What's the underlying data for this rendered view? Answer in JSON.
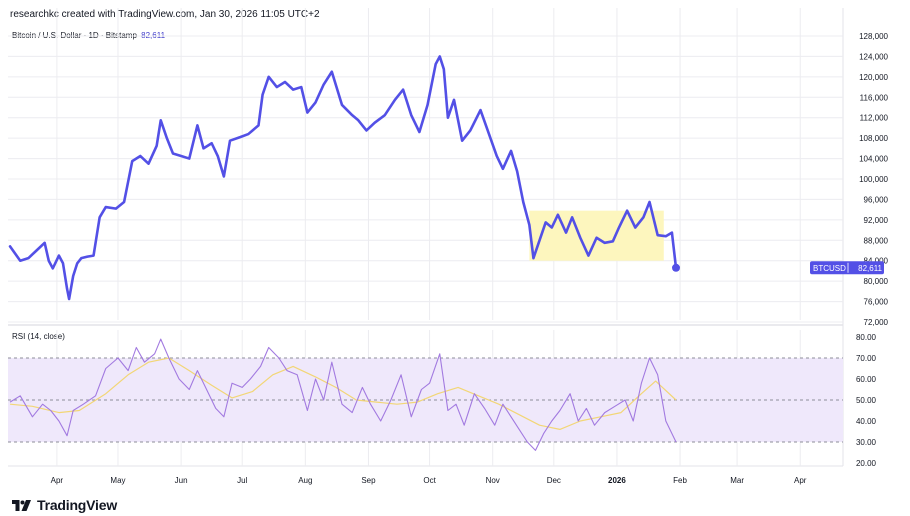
{
  "header": {
    "credit": "researchkc created with TradingView.com, Jan 30, 2026 11:05 UTC+2"
  },
  "legend": {
    "symbol": "Bitcoin / U.S. Dollar · 1D · Bitstamp",
    "price": "82,611"
  },
  "rsi_legend": {
    "label": "RSI (14, close)"
  },
  "footer": {
    "brand": "TradingView"
  },
  "price_badge": {
    "symbol": "BTCUSD",
    "value": "82,611"
  },
  "colors": {
    "price_line": "#5350e6",
    "rsi_line": "#a27ae0",
    "rsi_ma": "#f2d676",
    "rsi_band": "#efe8fb",
    "highlight": "#fdf6be",
    "badge_bg": "#5350e6",
    "grid": "#ececf0"
  },
  "chart_data": [
    {
      "type": "line",
      "title": "",
      "series": [
        {
          "name": "",
          "x": [
            "2025-03-09",
            "2025-03-14",
            "2025-03-18",
            "2025-03-22",
            "2025-03-26",
            "2025-03-28",
            "2025-03-30",
            "2025-04-02",
            "2025-04-04",
            "2025-04-06",
            "2025-04-07",
            "2025-04-09",
            "2025-04-11",
            "2025-04-13",
            "2025-04-16",
            "2025-04-19",
            "2025-04-22",
            "2025-04-25",
            "2025-04-30",
            "2025-05-04",
            "2025-05-08",
            "2025-05-12",
            "2025-05-16",
            "2025-05-20",
            "2025-05-22",
            "2025-05-25",
            "2025-05-28",
            "2025-06-01",
            "2025-06-05",
            "2025-06-09",
            "2025-06-12",
            "2025-06-16",
            "2025-06-19",
            "2025-06-22",
            "2025-06-25",
            "2025-06-30",
            "2025-07-04",
            "2025-07-09",
            "2025-07-11",
            "2025-07-14",
            "2025-07-18",
            "2025-07-22",
            "2025-07-26",
            "2025-07-30",
            "2025-08-02",
            "2025-08-06",
            "2025-08-10",
            "2025-08-14",
            "2025-08-19",
            "2025-08-24",
            "2025-08-27",
            "2025-08-31",
            "2025-09-04",
            "2025-09-09",
            "2025-09-14",
            "2025-09-18",
            "2025-09-22",
            "2025-09-26",
            "2025-09-30",
            "2025-10-04",
            "2025-10-06",
            "2025-10-08",
            "2025-10-10",
            "2025-10-13",
            "2025-10-17",
            "2025-10-21",
            "2025-10-26",
            "2025-10-30",
            "2025-11-03",
            "2025-11-06",
            "2025-11-10",
            "2025-11-13",
            "2025-11-16",
            "2025-11-19",
            "2025-11-21",
            "2025-11-24",
            "2025-11-27",
            "2025-11-30",
            "2025-12-03",
            "2025-12-07",
            "2025-12-10",
            "2025-12-14",
            "2025-12-18",
            "2025-12-22",
            "2025-12-26",
            "2025-12-30",
            "2026-01-02",
            "2026-01-06",
            "2026-01-10",
            "2026-01-14",
            "2026-01-17",
            "2026-01-21",
            "2026-01-25",
            "2026-01-28",
            "2026-01-30"
          ],
          "values": [
            86800,
            84000,
            84500,
            86000,
            87500,
            84000,
            82500,
            85000,
            83500,
            78500,
            76500,
            81000,
            83500,
            84500,
            84800,
            85000,
            92500,
            94500,
            94200,
            95500,
            103500,
            104500,
            103000,
            106500,
            111500,
            108000,
            105000,
            104500,
            104000,
            110500,
            106000,
            107000,
            104500,
            100500,
            107500,
            108200,
            108800,
            110500,
            116500,
            120000,
            118000,
            119000,
            117500,
            118000,
            113000,
            115000,
            118500,
            121000,
            114500,
            112500,
            111500,
            109500,
            111000,
            112500,
            115500,
            117500,
            112500,
            109200,
            114500,
            122500,
            124000,
            121500,
            112000,
            115500,
            107500,
            109500,
            113500,
            109000,
            104500,
            102000,
            105500,
            101500,
            95500,
            91000,
            84500,
            88000,
            91500,
            90500,
            93000,
            89500,
            92500,
            88500,
            85000,
            88500,
            87500,
            87800,
            90500,
            93800,
            90500,
            92500,
            95500,
            89000,
            88800,
            89500,
            82611
          ]
        }
      ],
      "ylim": [
        72000,
        128000
      ],
      "yticks": [
        "128,000",
        "124,000",
        "120,000",
        "116,000",
        "112,000",
        "108,000",
        "104,000",
        "100,000",
        "96,000",
        "92,000",
        "88,000",
        "84,000",
        "80,000",
        "76,000",
        "72,000"
      ],
      "ytick_values": [
        128000,
        124000,
        120000,
        116000,
        112000,
        108000,
        104000,
        100000,
        96000,
        92000,
        88000,
        84000,
        80000,
        76000,
        72000
      ],
      "xticks": [
        "Apr",
        "May",
        "Jun",
        "Jul",
        "Aug",
        "Sep",
        "Oct",
        "Nov",
        "Dec",
        "2026",
        "Feb",
        "Mar",
        "Apr"
      ],
      "xtick_values": [
        "2025-04-01",
        "2025-05-01",
        "2025-06-01",
        "2025-07-01",
        "2025-08-01",
        "2025-09-01",
        "2025-10-01",
        "2025-11-01",
        "2025-12-01",
        "2026-01-01",
        "2026-02-01",
        "2026-03-01",
        "2026-04-01"
      ],
      "xlim": [
        "2025-03-08",
        "2026-04-22"
      ],
      "highlight_box": {
        "x": [
          "2025-11-19",
          "2026-01-24"
        ],
        "y": [
          84000,
          93800
        ]
      },
      "last_point": {
        "x": "2026-01-30",
        "y": 82611
      },
      "grid": true
    },
    {
      "type": "line",
      "title": "RSI (14, close)",
      "series": [
        {
          "name": "",
          "x": [
            "2025-03-09",
            "2025-03-14",
            "2025-03-20",
            "2025-03-25",
            "2025-03-29",
            "2025-04-02",
            "2025-04-06",
            "2025-04-09",
            "2025-04-14",
            "2025-04-20",
            "2025-04-25",
            "2025-05-01",
            "2025-05-06",
            "2025-05-10",
            "2025-05-14",
            "2025-05-19",
            "2025-05-22",
            "2025-05-26",
            "2025-05-31",
            "2025-06-05",
            "2025-06-09",
            "2025-06-13",
            "2025-06-18",
            "2025-06-22",
            "2025-06-26",
            "2025-07-01",
            "2025-07-05",
            "2025-07-10",
            "2025-07-14",
            "2025-07-19",
            "2025-07-23",
            "2025-07-28",
            "2025-08-02",
            "2025-08-06",
            "2025-08-10",
            "2025-08-14",
            "2025-08-19",
            "2025-08-24",
            "2025-08-29",
            "2025-09-02",
            "2025-09-07",
            "2025-09-12",
            "2025-09-17",
            "2025-09-22",
            "2025-09-27",
            "2025-10-01",
            "2025-10-06",
            "2025-10-10",
            "2025-10-14",
            "2025-10-18",
            "2025-10-23",
            "2025-10-28",
            "2025-11-02",
            "2025-11-06",
            "2025-11-10",
            "2025-11-14",
            "2025-11-18",
            "2025-11-22",
            "2025-11-26",
            "2025-11-30",
            "2025-12-04",
            "2025-12-09",
            "2025-12-13",
            "2025-12-17",
            "2025-12-21",
            "2025-12-26",
            "2025-12-31",
            "2026-01-05",
            "2026-01-09",
            "2026-01-13",
            "2026-01-17",
            "2026-01-21",
            "2026-01-25",
            "2026-01-30"
          ],
          "values": [
            49,
            52,
            42,
            48,
            45,
            40,
            33,
            45,
            48,
            52,
            65,
            70,
            64,
            75,
            68,
            72,
            79,
            70,
            60,
            55,
            64,
            56,
            46,
            42,
            58,
            56,
            60,
            66,
            75,
            70,
            64,
            62,
            45,
            60,
            50,
            68,
            48,
            44,
            56,
            48,
            40,
            50,
            62,
            42,
            55,
            58,
            72,
            45,
            48,
            38,
            53,
            46,
            38,
            48,
            42,
            36,
            30,
            26,
            34,
            40,
            45,
            53,
            40,
            46,
            38,
            44,
            47,
            50,
            40,
            58,
            70,
            62,
            40,
            30
          ]
        },
        {
          "name": "",
          "x": [
            "2025-03-09",
            "2025-03-20",
            "2025-04-02",
            "2025-04-12",
            "2025-04-25",
            "2025-05-06",
            "2025-05-16",
            "2025-05-26",
            "2025-06-05",
            "2025-06-16",
            "2025-06-26",
            "2025-07-06",
            "2025-07-16",
            "2025-07-26",
            "2025-08-06",
            "2025-08-16",
            "2025-08-26",
            "2025-09-05",
            "2025-09-15",
            "2025-09-25",
            "2025-10-05",
            "2025-10-15",
            "2025-10-25",
            "2025-11-04",
            "2025-11-14",
            "2025-11-24",
            "2025-12-04",
            "2025-12-14",
            "2025-12-24",
            "2026-01-03",
            "2026-01-13",
            "2026-01-20",
            "2026-01-30"
          ],
          "values": [
            48,
            47,
            44,
            45,
            53,
            62,
            68,
            70,
            64,
            57,
            51,
            54,
            62,
            66,
            61,
            56,
            50,
            49,
            48,
            49,
            53,
            56,
            52,
            48,
            43,
            38,
            36,
            40,
            42,
            44,
            53,
            59,
            50
          ]
        }
      ],
      "ylim": [
        20,
        80
      ],
      "yticks": [
        "80.00",
        "70.00",
        "60.00",
        "50.00",
        "40.00",
        "30.00",
        "20.00"
      ],
      "ytick_values": [
        80,
        70,
        60,
        50,
        40,
        30,
        20
      ],
      "bands": [
        70,
        50,
        30
      ],
      "grid": true
    }
  ]
}
